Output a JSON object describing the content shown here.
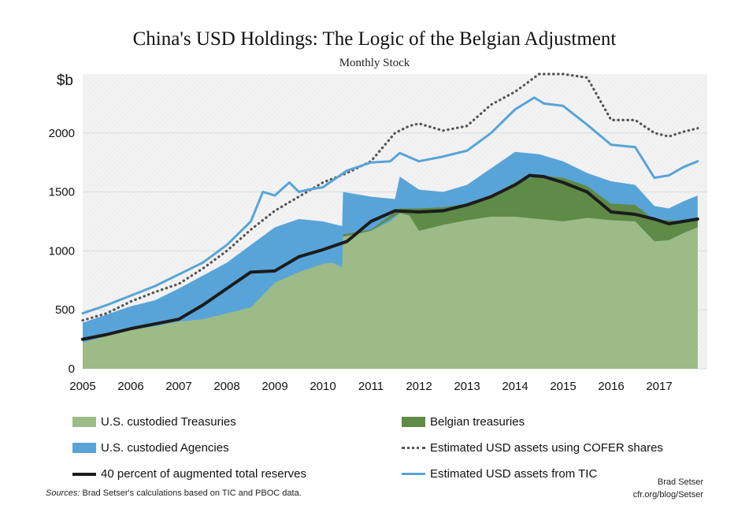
{
  "chart_data": {
    "type": "area",
    "title": "China's USD Holdings: The Logic of the Belgian Adjustment",
    "subtitle": "Monthly Stock",
    "ylabel": "$b",
    "xlabel": "",
    "xlim": [
      2005.0,
      2018.0
    ],
    "ylim": [
      0,
      2500
    ],
    "xticks": [
      "2005",
      "2006",
      "2007",
      "2008",
      "2009",
      "2010",
      "2011",
      "2012",
      "2013",
      "2014",
      "2015",
      "2016",
      "2017"
    ],
    "yticks": [
      "0",
      "500",
      "1000",
      "1500",
      "2000"
    ],
    "grid": true,
    "legend_position": "bottom",
    "series": [
      {
        "name": "U.S. custodied Treasuries",
        "kind": "area-base",
        "color": "#9dbb86",
        "x": [
          2005.0,
          2005.5,
          2006.0,
          2006.5,
          2007.0,
          2007.5,
          2008.0,
          2008.5,
          2009.0,
          2009.5,
          2010.0,
          2010.2,
          2010.4,
          2010.42,
          2010.8,
          2011.0,
          2011.4,
          2011.6,
          2011.8,
          2012.0,
          2012.5,
          2013.0,
          2013.5,
          2014.0,
          2014.5,
          2015.0,
          2015.5,
          2016.0,
          2016.5,
          2016.9,
          2017.2,
          2017.5,
          2017.8
        ],
        "values": [
          220,
          280,
          330,
          360,
          400,
          420,
          470,
          520,
          730,
          820,
          890,
          900,
          860,
          1120,
          1150,
          1170,
          1250,
          1320,
          1300,
          1170,
          1220,
          1260,
          1290,
          1290,
          1270,
          1250,
          1280,
          1260,
          1250,
          1080,
          1090,
          1150,
          1200
        ]
      },
      {
        "name": "Belgian treasuries",
        "kind": "area-stack",
        "color": "#5f8a47",
        "x": [
          2010.42,
          2011.0,
          2011.6,
          2012.0,
          2012.5,
          2013.0,
          2013.5,
          2014.0,
          2014.5,
          2015.0,
          2015.5,
          2016.0,
          2016.5,
          2016.9,
          2017.2,
          2017.5,
          2017.8
        ],
        "values": [
          1140,
          1180,
          1360,
          1360,
          1370,
          1400,
          1470,
          1580,
          1640,
          1620,
          1550,
          1400,
          1390,
          1260,
          1260,
          1250,
          1270
        ]
      },
      {
        "name": "U.S. custodied Agencies",
        "kind": "area-stack",
        "color": "#58a4d8",
        "x": [
          2005.0,
          2005.5,
          2006.0,
          2006.5,
          2007.0,
          2007.5,
          2008.0,
          2008.5,
          2009.0,
          2009.5,
          2010.0,
          2010.4,
          2010.42,
          2011.0,
          2011.5,
          2011.6,
          2012.0,
          2012.5,
          2013.0,
          2013.5,
          2014.0,
          2014.5,
          2015.0,
          2015.5,
          2016.0,
          2016.5,
          2016.9,
          2017.2,
          2017.5,
          2017.8
        ],
        "values": [
          390,
          460,
          530,
          580,
          680,
          790,
          900,
          1050,
          1200,
          1270,
          1250,
          1210,
          1500,
          1460,
          1440,
          1630,
          1520,
          1500,
          1560,
          1700,
          1840,
          1820,
          1760,
          1660,
          1590,
          1560,
          1380,
          1360,
          1420,
          1470
        ]
      },
      {
        "name": "Estimated USD assets using COFER shares",
        "kind": "line-dotted",
        "color": "#555555",
        "x": [
          2005.0,
          2005.5,
          2006.0,
          2006.5,
          2007.0,
          2007.5,
          2008.0,
          2008.5,
          2009.0,
          2009.5,
          2010.0,
          2010.5,
          2011.0,
          2011.5,
          2011.8,
          2012.0,
          2012.5,
          2013.0,
          2013.5,
          2014.0,
          2014.5,
          2015.0,
          2015.5,
          2016.0,
          2016.5,
          2016.9,
          2017.2,
          2017.5,
          2017.8
        ],
        "values": [
          410,
          470,
          570,
          650,
          720,
          850,
          1000,
          1180,
          1340,
          1460,
          1580,
          1660,
          1760,
          2000,
          2060,
          2080,
          2020,
          2060,
          2240,
          2350,
          2500,
          2500,
          2470,
          2110,
          2110,
          2000,
          1970,
          2010,
          2040
        ]
      },
      {
        "name": "40 percent of augmented total reserves",
        "kind": "line-thick",
        "color": "#1c1c1c",
        "x": [
          2005.0,
          2005.5,
          2006.0,
          2006.5,
          2007.0,
          2007.5,
          2008.0,
          2008.5,
          2009.0,
          2009.5,
          2010.0,
          2010.5,
          2011.0,
          2011.5,
          2012.0,
          2012.5,
          2013.0,
          2013.5,
          2014.0,
          2014.3,
          2014.6,
          2015.0,
          2015.5,
          2016.0,
          2016.5,
          2016.9,
          2017.2,
          2017.5,
          2017.8
        ],
        "values": [
          250,
          290,
          340,
          380,
          420,
          540,
          680,
          820,
          830,
          950,
          1010,
          1080,
          1250,
          1340,
          1330,
          1340,
          1390,
          1460,
          1560,
          1640,
          1630,
          1580,
          1500,
          1330,
          1310,
          1270,
          1230,
          1250,
          1270
        ]
      },
      {
        "name": "Estimated USD assets from TIC",
        "kind": "line",
        "color": "#58a4d8",
        "x": [
          2005.0,
          2005.5,
          2006.0,
          2006.5,
          2007.0,
          2007.5,
          2008.0,
          2008.5,
          2008.75,
          2009.0,
          2009.3,
          2009.5,
          2009.7,
          2010.0,
          2010.5,
          2011.0,
          2011.4,
          2011.6,
          2012.0,
          2012.5,
          2013.0,
          2013.5,
          2014.0,
          2014.4,
          2014.6,
          2015.0,
          2015.5,
          2016.0,
          2016.5,
          2016.9,
          2017.2,
          2017.5,
          2017.8
        ],
        "values": [
          470,
          540,
          620,
          700,
          800,
          900,
          1050,
          1250,
          1500,
          1470,
          1580,
          1500,
          1520,
          1540,
          1680,
          1750,
          1760,
          1830,
          1760,
          1800,
          1850,
          2000,
          2200,
          2300,
          2250,
          2230,
          2070,
          1900,
          1880,
          1620,
          1640,
          1710,
          1760
        ]
      }
    ]
  },
  "legend": {
    "items": [
      "U.S. custodied Treasuries",
      "Belgian treasuries",
      "U.S. custodied Agencies",
      "Estimated USD assets using COFER shares",
      "40 percent of augmented total reserves",
      "Estimated USD assets from TIC"
    ]
  },
  "footer": {
    "source_label": "Sources:",
    "source_text": " Brad Setser's calculations based on TIC and PBOC data.",
    "author": "Brad Setser",
    "site": "cfr.org/blog/Setser"
  }
}
